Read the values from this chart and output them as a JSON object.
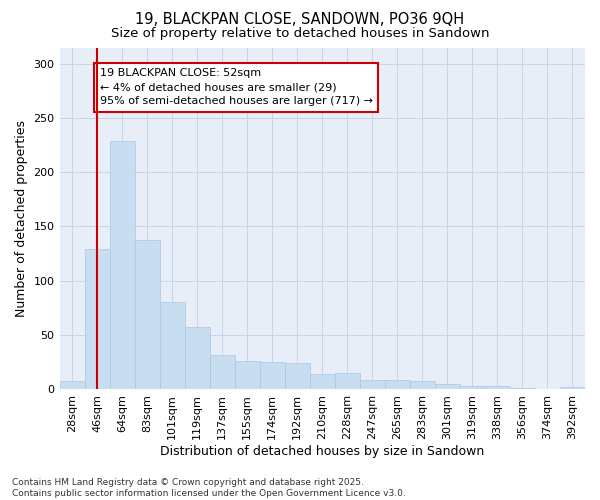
{
  "title1": "19, BLACKPAN CLOSE, SANDOWN, PO36 9QH",
  "title2": "Size of property relative to detached houses in Sandown",
  "xlabel": "Distribution of detached houses by size in Sandown",
  "ylabel": "Number of detached properties",
  "bin_labels": [
    "28sqm",
    "46sqm",
    "64sqm",
    "83sqm",
    "101sqm",
    "119sqm",
    "137sqm",
    "155sqm",
    "174sqm",
    "192sqm",
    "210sqm",
    "228sqm",
    "247sqm",
    "265sqm",
    "283sqm",
    "301sqm",
    "319sqm",
    "338sqm",
    "356sqm",
    "374sqm",
    "392sqm"
  ],
  "bar_heights": [
    7,
    129,
    229,
    137,
    80,
    57,
    31,
    26,
    25,
    24,
    14,
    15,
    8,
    8,
    7,
    5,
    3,
    3,
    1,
    0,
    2
  ],
  "bar_color": "#c9ddf0",
  "bar_edge_color": "#a8c8e8",
  "vline_x": 1,
  "vline_color": "#cc0000",
  "annotation_text": "19 BLACKPAN CLOSE: 52sqm\n← 4% of detached houses are smaller (29)\n95% of semi-detached houses are larger (717) →",
  "annotation_box_color": "#ffffff",
  "annotation_border_color": "#cc0000",
  "ylim": [
    0,
    315
  ],
  "yticks": [
    0,
    50,
    100,
    150,
    200,
    250,
    300
  ],
  "grid_color": "#c8d4e8",
  "bg_color": "#e8eef8",
  "footnote": "Contains HM Land Registry data © Crown copyright and database right 2025.\nContains public sector information licensed under the Open Government Licence v3.0.",
  "title1_fontsize": 10.5,
  "title2_fontsize": 9.5,
  "axis_label_fontsize": 9,
  "tick_fontsize": 8,
  "annotation_fontsize": 8,
  "footnote_fontsize": 6.5
}
